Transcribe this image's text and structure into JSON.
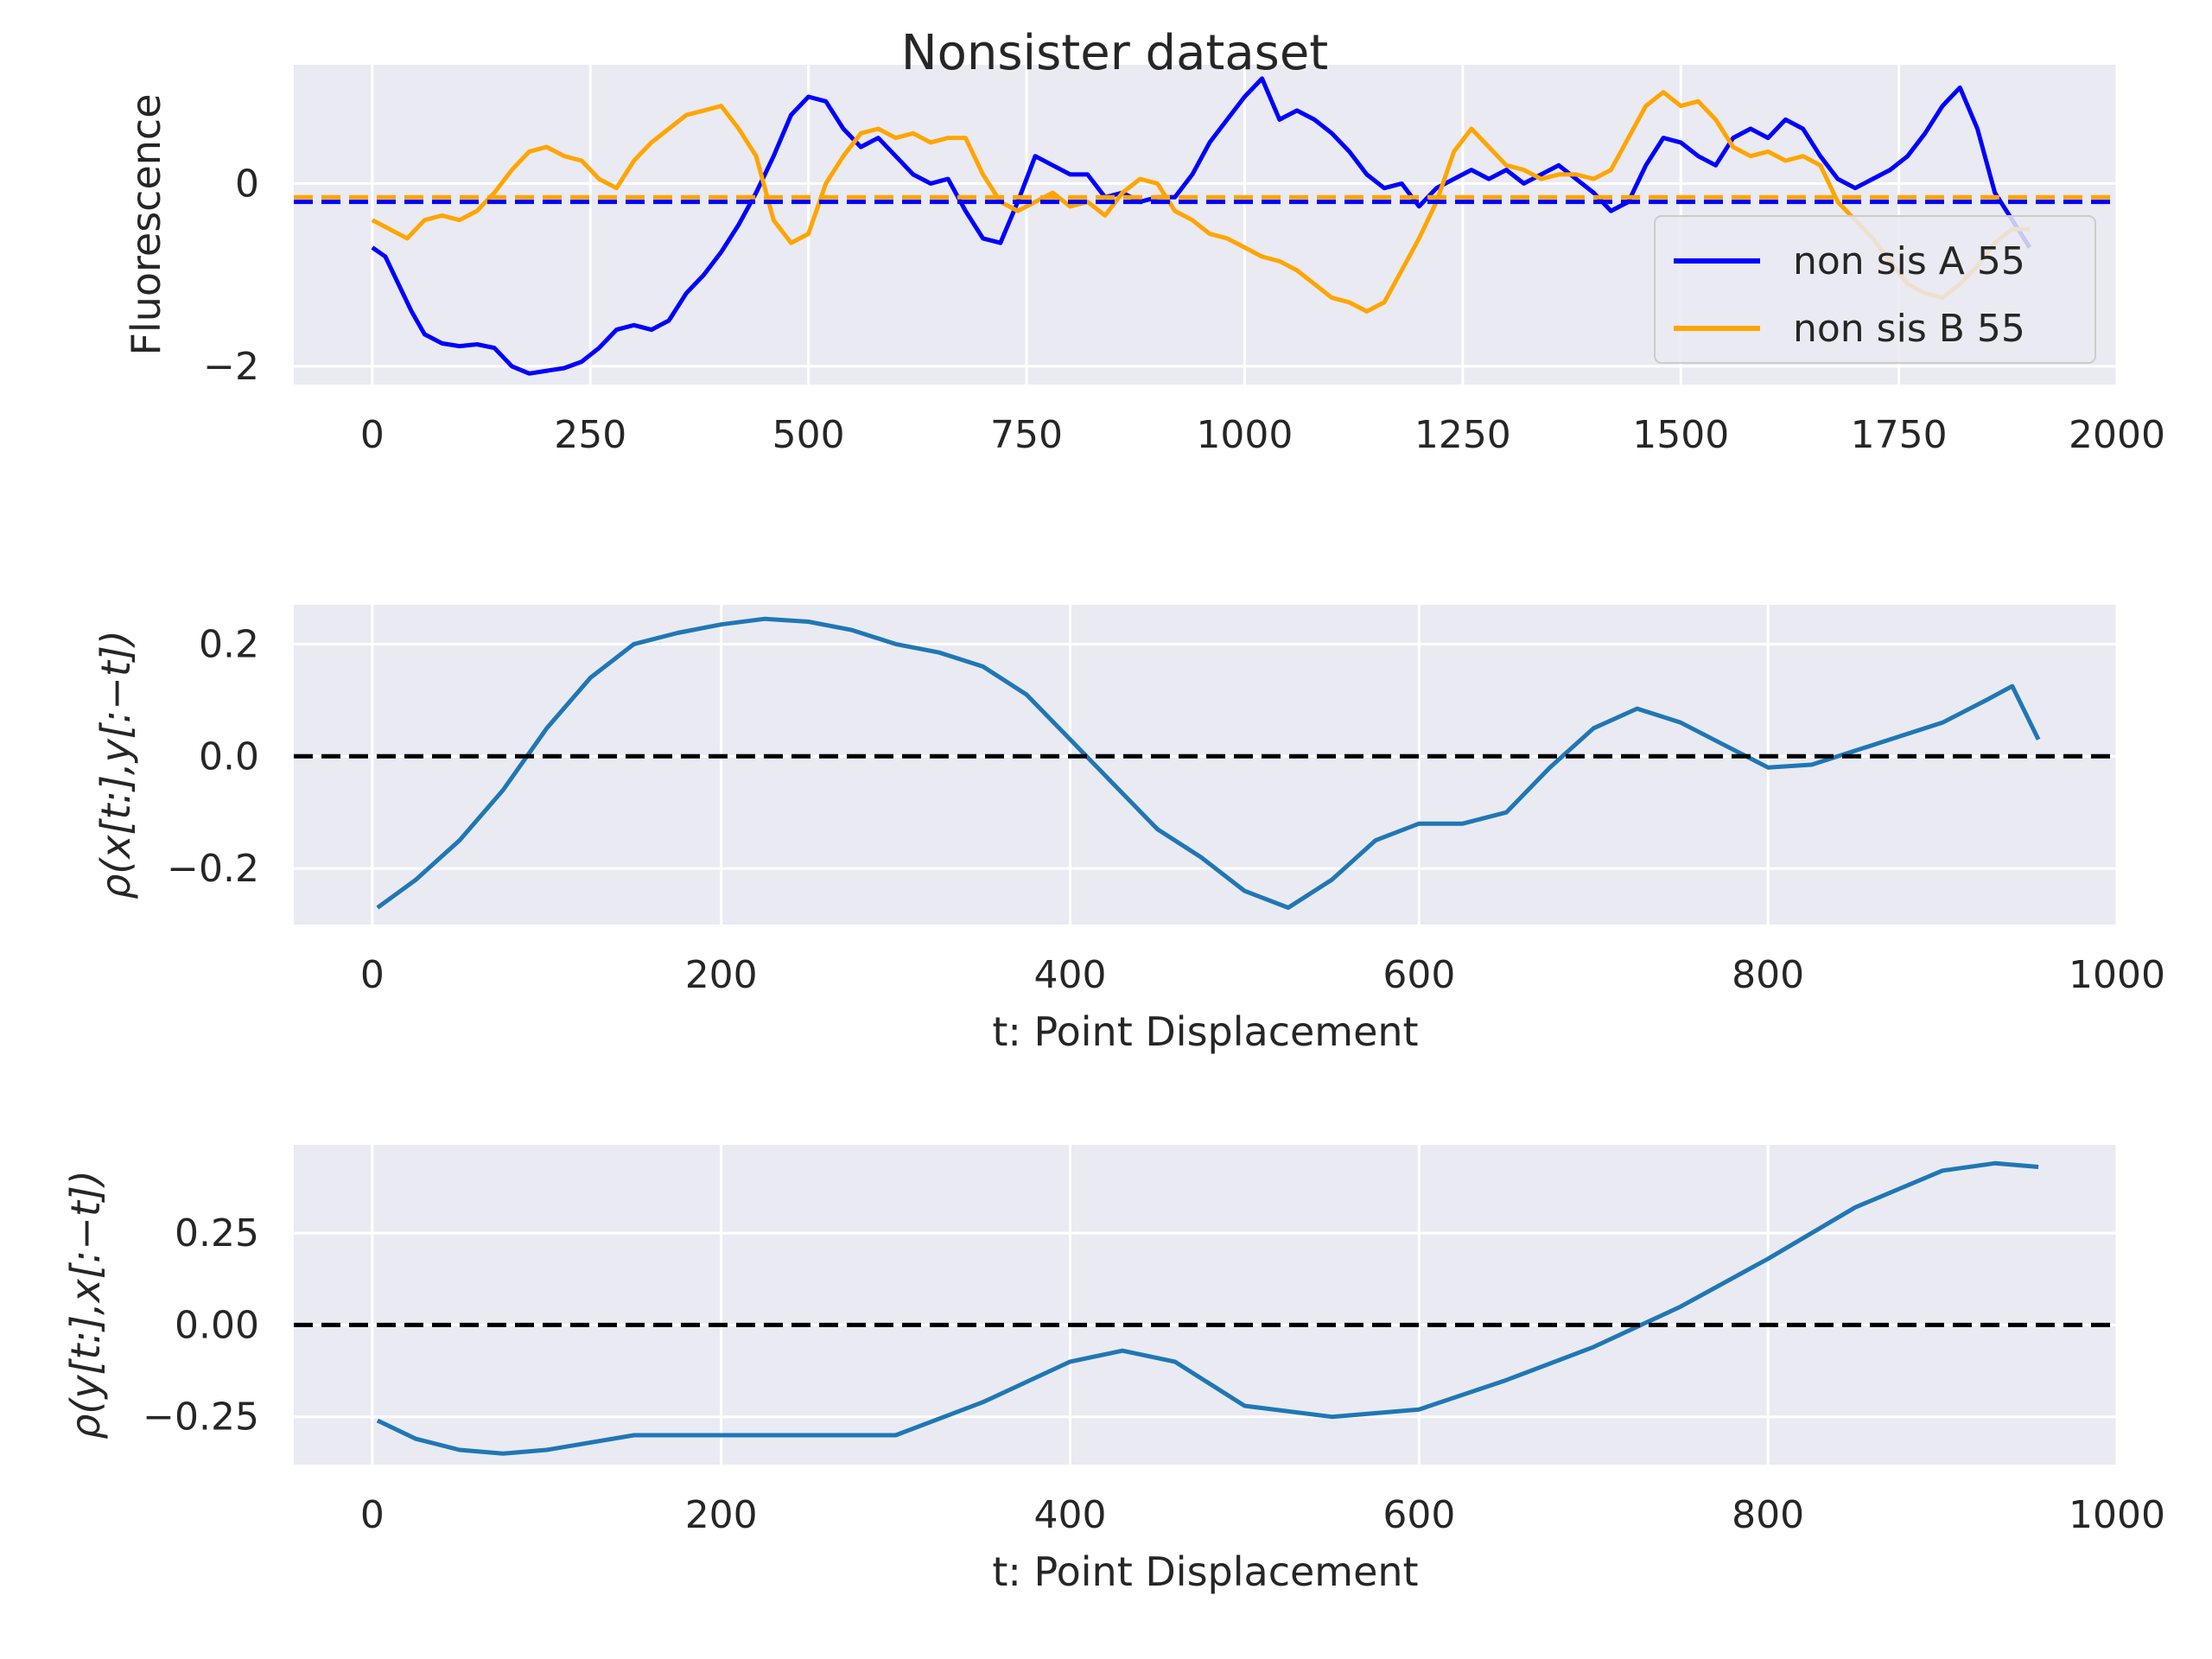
{
  "figure": {
    "suptitle": "Nonsister dataset"
  },
  "chart_data": [
    {
      "type": "line",
      "ylabel": "Fluorescence",
      "xlabel": "",
      "xlim": [
        -90,
        2000
      ],
      "ylim": [
        -2.2,
        1.3
      ],
      "xticks": [
        0,
        250,
        500,
        750,
        1000,
        1250,
        1500,
        1750,
        2000
      ],
      "xtick_labels": [
        "0",
        "250",
        "500",
        "750",
        "1000",
        "1250",
        "1500",
        "1750",
        "2000"
      ],
      "yticks": [
        0,
        -2
      ],
      "ytick_labels": [
        "0",
        "−2"
      ],
      "grid": true,
      "legend_position": "lower-right",
      "series": [
        {
          "name": "non sis A 55",
          "color": "#0000ff",
          "x": [
            0,
            15,
            30,
            45,
            60,
            80,
            100,
            120,
            140,
            160,
            180,
            200,
            220,
            240,
            260,
            280,
            300,
            320,
            340,
            360,
            380,
            400,
            420,
            440,
            460,
            480,
            500,
            520,
            540,
            560,
            580,
            600,
            620,
            640,
            660,
            680,
            700,
            720,
            740,
            760,
            780,
            800,
            820,
            840,
            860,
            880,
            900,
            920,
            940,
            960,
            980,
            1000,
            1020,
            1040,
            1060,
            1080,
            1100,
            1120,
            1140,
            1160,
            1180,
            1200,
            1220,
            1240,
            1260,
            1280,
            1300,
            1320,
            1340,
            1360,
            1380,
            1400,
            1420,
            1440,
            1460,
            1480,
            1500,
            1520,
            1540,
            1560,
            1580,
            1600,
            1620,
            1640,
            1660,
            1680,
            1700,
            1720,
            1740,
            1760,
            1780,
            1800,
            1820,
            1840,
            1860,
            1880,
            1900
          ],
          "y": [
            -0.7,
            -0.8,
            -1.1,
            -1.4,
            -1.65,
            -1.75,
            -1.78,
            -1.76,
            -1.8,
            -2.0,
            -2.08,
            -2.05,
            -2.02,
            -1.95,
            -1.8,
            -1.6,
            -1.55,
            -1.6,
            -1.5,
            -1.2,
            -1.0,
            -0.75,
            -0.45,
            -0.1,
            0.3,
            0.75,
            0.95,
            0.9,
            0.6,
            0.4,
            0.5,
            0.3,
            0.1,
            0.0,
            0.05,
            -0.3,
            -0.6,
            -0.65,
            -0.2,
            0.3,
            0.2,
            0.1,
            0.1,
            -0.15,
            -0.1,
            -0.2,
            -0.15,
            -0.15,
            0.1,
            0.45,
            0.7,
            0.95,
            1.15,
            0.7,
            0.8,
            0.7,
            0.55,
            0.35,
            0.1,
            -0.05,
            0.0,
            -0.25,
            -0.05,
            0.05,
            0.15,
            0.05,
            0.15,
            0.0,
            0.1,
            0.2,
            0.05,
            -0.1,
            -0.3,
            -0.2,
            0.2,
            0.5,
            0.45,
            0.3,
            0.2,
            0.5,
            0.6,
            0.5,
            0.7,
            0.6,
            0.3,
            0.05,
            -0.05,
            0.05,
            0.15,
            0.3,
            0.55,
            0.85,
            1.05,
            0.6,
            -0.1,
            -0.4,
            -0.7
          ]
        },
        {
          "name": "non sis B 55",
          "color": "#ffa500",
          "x": [
            0,
            20,
            40,
            60,
            80,
            100,
            120,
            140,
            160,
            180,
            200,
            220,
            240,
            260,
            280,
            300,
            320,
            340,
            360,
            380,
            400,
            420,
            440,
            460,
            480,
            500,
            520,
            540,
            560,
            580,
            600,
            620,
            640,
            660,
            680,
            700,
            720,
            740,
            760,
            780,
            800,
            820,
            840,
            860,
            880,
            900,
            920,
            940,
            960,
            980,
            1000,
            1020,
            1040,
            1060,
            1080,
            1100,
            1120,
            1140,
            1160,
            1180,
            1200,
            1220,
            1240,
            1260,
            1280,
            1300,
            1320,
            1340,
            1360,
            1380,
            1400,
            1420,
            1440,
            1460,
            1480,
            1500,
            1520,
            1540,
            1560,
            1580,
            1600,
            1620,
            1640,
            1660,
            1680,
            1700,
            1720,
            1740,
            1760,
            1780,
            1800,
            1820,
            1840,
            1860,
            1880,
            1900
          ],
          "y": [
            -0.4,
            -0.5,
            -0.6,
            -0.4,
            -0.35,
            -0.4,
            -0.3,
            -0.1,
            0.15,
            0.35,
            0.4,
            0.3,
            0.25,
            0.05,
            -0.05,
            0.25,
            0.45,
            0.6,
            0.75,
            0.8,
            0.85,
            0.6,
            0.3,
            -0.4,
            -0.65,
            -0.55,
            0.0,
            0.3,
            0.55,
            0.6,
            0.5,
            0.55,
            0.45,
            0.5,
            0.5,
            0.1,
            -0.2,
            -0.3,
            -0.2,
            -0.1,
            -0.25,
            -0.2,
            -0.35,
            -0.1,
            0.05,
            0.0,
            -0.3,
            -0.4,
            -0.55,
            -0.6,
            -0.7,
            -0.8,
            -0.85,
            -0.95,
            -1.1,
            -1.25,
            -1.3,
            -1.4,
            -1.3,
            -0.95,
            -0.6,
            -0.2,
            0.35,
            0.6,
            0.4,
            0.2,
            0.15,
            0.05,
            0.1,
            0.1,
            0.05,
            0.15,
            0.5,
            0.85,
            1.0,
            0.85,
            0.9,
            0.7,
            0.4,
            0.3,
            0.35,
            0.25,
            0.3,
            0.2,
            -0.2,
            -0.4,
            -0.6,
            -0.85,
            -1.1,
            -1.2,
            -1.25,
            -1.1,
            -0.9,
            -0.65,
            -0.5,
            -0.5
          ]
        }
      ],
      "hlines": [
        {
          "y": -0.2,
          "color": "#0000ff",
          "style": "dashed"
        },
        {
          "y": -0.15,
          "color": "#ffa500",
          "style": "dashed"
        }
      ]
    },
    {
      "type": "line",
      "ylabel": "ρ(x[t:],y[:−t])",
      "xlabel": "t: Point Displacement",
      "xlim": [
        -45,
        1000
      ],
      "ylim": [
        -0.3,
        0.27
      ],
      "xticks": [
        0,
        200,
        400,
        600,
        800,
        1000
      ],
      "xtick_labels": [
        "0",
        "200",
        "400",
        "600",
        "800",
        "1000"
      ],
      "yticks": [
        0.2,
        0.0,
        -0.2
      ],
      "ytick_labels": [
        "0.2",
        "0.0",
        "−0.2"
      ],
      "grid": true,
      "series": [
        {
          "color": "#1f77b4",
          "x": [
            3,
            25,
            50,
            75,
            100,
            125,
            150,
            175,
            200,
            225,
            250,
            275,
            300,
            325,
            350,
            375,
            400,
            425,
            450,
            475,
            500,
            525,
            550,
            575,
            600,
            625,
            650,
            675,
            700,
            725,
            750,
            775,
            800,
            825,
            850,
            875,
            900,
            925,
            940,
            955
          ],
          "y": [
            -0.27,
            -0.22,
            -0.15,
            -0.06,
            0.05,
            0.14,
            0.2,
            0.22,
            0.235,
            0.245,
            0.24,
            0.225,
            0.2,
            0.185,
            0.16,
            0.11,
            0.03,
            -0.05,
            -0.13,
            -0.18,
            -0.24,
            -0.27,
            -0.22,
            -0.15,
            -0.12,
            -0.12,
            -0.1,
            -0.02,
            0.05,
            0.085,
            0.06,
            0.02,
            -0.02,
            -0.015,
            0.01,
            0.035,
            0.06,
            0.1,
            0.125,
            0.03
          ]
        }
      ],
      "hlines": [
        {
          "y": 0.0,
          "color": "#000000",
          "style": "dashed"
        }
      ]
    },
    {
      "type": "line",
      "ylabel": "ρ(y[t:],x[:−t])",
      "xlabel": "t: Point Displacement",
      "xlim": [
        -45,
        1000
      ],
      "ylim": [
        -0.38,
        0.49
      ],
      "xticks": [
        0,
        200,
        400,
        600,
        800,
        1000
      ],
      "xtick_labels": [
        "0",
        "200",
        "400",
        "600",
        "800",
        "1000"
      ],
      "yticks": [
        0.25,
        0.0,
        -0.25
      ],
      "ytick_labels": [
        "0.25",
        "0.00",
        "−0.25"
      ],
      "grid": true,
      "series": [
        {
          "color": "#1f77b4",
          "x": [
            3,
            25,
            50,
            75,
            100,
            150,
            200,
            250,
            300,
            350,
            400,
            430,
            460,
            500,
            550,
            600,
            650,
            700,
            750,
            800,
            850,
            900,
            930,
            955
          ],
          "y": [
            -0.26,
            -0.31,
            -0.34,
            -0.35,
            -0.34,
            -0.3,
            -0.3,
            -0.3,
            -0.3,
            -0.21,
            -0.1,
            -0.07,
            -0.1,
            -0.22,
            -0.25,
            -0.23,
            -0.15,
            -0.06,
            0.05,
            0.18,
            0.32,
            0.42,
            0.44,
            0.43
          ]
        }
      ],
      "hlines": [
        {
          "y": 0.0,
          "color": "#000000",
          "style": "dashed"
        }
      ]
    }
  ]
}
